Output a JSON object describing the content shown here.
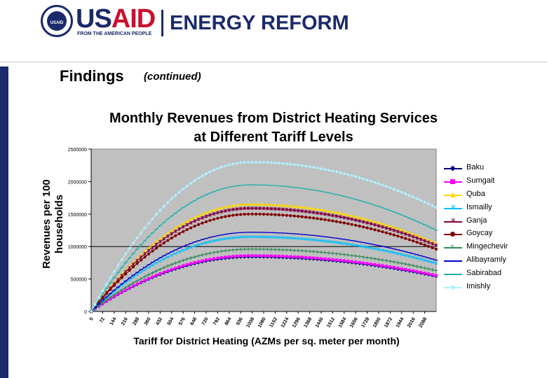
{
  "header": {
    "seal_text": "USAID",
    "usaid_a": "US",
    "usaid_b": "AID",
    "tagline": "FROM THE AMERICAN PEOPLE",
    "brand": "ENERGY REFORM"
  },
  "slide": {
    "heading": "Findings",
    "heading_sub": "(continued)"
  },
  "colors": {
    "navy": "#1b2a6b",
    "red": "#c8102e",
    "plot_bg": "#c0c0c0"
  },
  "chart_data": {
    "type": "line",
    "title": "Monthly Revenues from District Heating Services at Different Tariff Levels",
    "title_line1": "Monthly Revenues from District Heating Services",
    "title_line2": "at Different Tariff Levels",
    "xlabel": "Tariff for District Heating (AZMs per sq. meter per month)",
    "ylabel_line1": "Revenues per 100",
    "ylabel_line2": "households",
    "ylim": [
      0,
      2500000
    ],
    "yticks": [
      0,
      500000,
      1000000,
      1500000,
      2000000,
      2500000
    ],
    "ytick_labels": [
      "0",
      "500000",
      "1000000",
      "1500000",
      "2000000",
      "2500000"
    ],
    "x_tick_labels": [
      "0",
      "72",
      "144",
      "216",
      "288",
      "360",
      "432",
      "504",
      "576",
      "648",
      "720",
      "792",
      "864",
      "936",
      "1008",
      "1080",
      "1152",
      "1224",
      "1296",
      "1368",
      "1440",
      "1512",
      "1584",
      "1656",
      "1728",
      "1800",
      "1872",
      "1944",
      "2016",
      "2088"
    ],
    "x_range": [
      0,
      2160
    ],
    "grid": false,
    "legend_position": "right",
    "peak_tariff": 1000,
    "series": [
      {
        "name": "Baku",
        "color": "#000080",
        "marker": "diamond",
        "peak": 840000,
        "end": 540000
      },
      {
        "name": "Sumgait",
        "color": "#ff00ff",
        "marker": "square",
        "peak": 860000,
        "end": 555000
      },
      {
        "name": "Quba",
        "color": "#ffd700",
        "marker": "triangle",
        "peak": 1650000,
        "end": 1050000
      },
      {
        "name": "Ismailly",
        "color": "#00bfff",
        "marker": "x",
        "peak": 1150000,
        "end": 740000
      },
      {
        "name": "Ganja",
        "color": "#800040",
        "marker": "star",
        "peak": 1590000,
        "end": 1020000
      },
      {
        "name": "Goycay",
        "color": "#800000",
        "marker": "circle",
        "peak": 1500000,
        "end": 960000
      },
      {
        "name": "Mingechevir",
        "color": "#2e8b57",
        "marker": "plus",
        "peak": 960000,
        "end": 630000
      },
      {
        "name": "Alibayramly",
        "color": "#0000cd",
        "marker": "dash",
        "peak": 1220000,
        "end": 790000
      },
      {
        "name": "Sabirabad",
        "color": "#20b2aa",
        "marker": "dash",
        "peak": 1950000,
        "end": 1250000
      },
      {
        "name": "Imishly",
        "color": "#b0f0ff",
        "marker": "diamond",
        "peak": 2300000,
        "end": 1600000
      }
    ]
  }
}
